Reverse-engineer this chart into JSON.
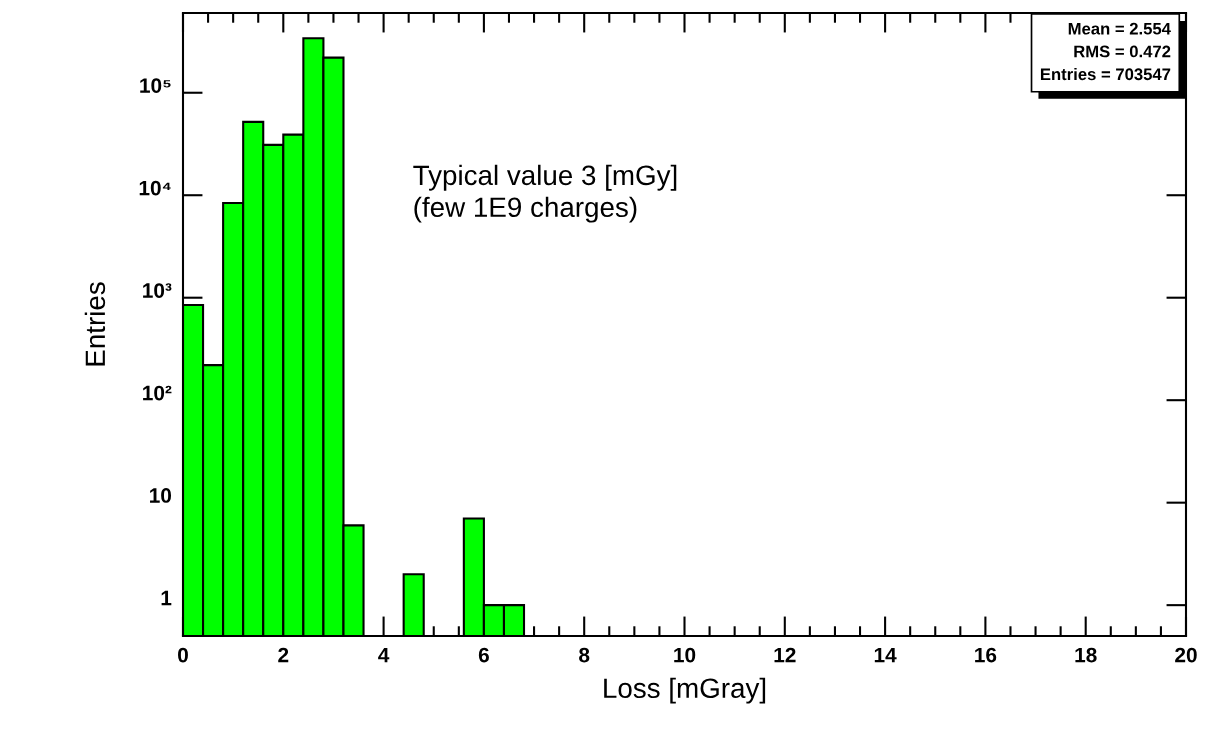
{
  "chart_data": {
    "type": "histogram",
    "xlabel": "Loss [mGray]",
    "ylabel": "Entries",
    "color": "#00ff00",
    "log": "y",
    "bins": [
      0,
      0.4,
      0.8,
      1.2,
      1.6,
      2.0,
      2.4,
      2.8,
      3.2,
      3.6,
      4.0,
      4.4,
      4.8,
      5.2,
      5.6,
      6.0,
      6.4,
      6.8,
      7.2,
      7.6,
      8.0,
      8.4,
      8.8,
      9.2,
      9.6,
      10.0,
      10.4,
      10.8,
      11.2,
      11.6,
      12.0,
      12.4,
      12.8,
      13.2,
      13.6,
      14.0,
      14.4,
      14.8,
      15.2,
      15.6,
      16.0,
      16.4,
      16.8,
      17.2,
      17.6,
      18.0,
      18.4,
      18.8,
      19.2,
      19.6,
      20.0
    ],
    "values": [
      850,
      220,
      8400,
      52000,
      31000,
      39000,
      340000,
      220000,
      6,
      null,
      null,
      2,
      null,
      null,
      7,
      1,
      1,
      null,
      null,
      null,
      null,
      null,
      null,
      null,
      null,
      null,
      null,
      null,
      null,
      null,
      null,
      null,
      null,
      null,
      null,
      null,
      null,
      null,
      null,
      null,
      null,
      null,
      null,
      null,
      null,
      null,
      null,
      null,
      null,
      null
    ],
    "xlim": [
      0,
      20
    ],
    "xticks": [
      0,
      2,
      4,
      6,
      8,
      10,
      12,
      14,
      16,
      18,
      20
    ],
    "ylim": [
      0.5,
      600000
    ],
    "yticks": [
      1,
      10,
      {
        "value": 100,
        "label": "10²"
      },
      {
        "value": 1000,
        "label": "10³"
      },
      {
        "value": 10000,
        "label": "10⁴"
      },
      {
        "value": 100000,
        "label": "10⁵"
      }
    ],
    "grid": false,
    "annotations": [
      "Mean = 2.554\nRMS = 0.472\nEntries = 703547",
      "Typical value 3 [mGy]\n(few 1E9 charges)"
    ]
  }
}
